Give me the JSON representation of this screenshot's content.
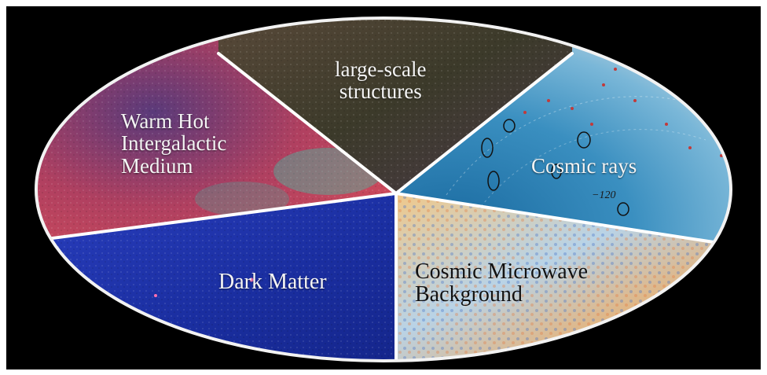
{
  "figure": {
    "segments": [
      {
        "id": "lss",
        "lines": [
          "large-scale",
          "structures"
        ],
        "color": "#4a3a2a"
      },
      {
        "id": "cr",
        "lines": [
          "Cosmic rays"
        ],
        "color": "#4fa0cc",
        "tick_label": "−120"
      },
      {
        "id": "cmb",
        "lines": [
          "Cosmic Microwave",
          "Background"
        ],
        "color": "#e8c27a"
      },
      {
        "id": "dm",
        "lines": [
          "Dark Matter"
        ],
        "color": "#1f3fb0"
      },
      {
        "id": "whim",
        "lines": [
          "Warm Hot",
          "Intergalactic",
          "Medium"
        ],
        "color": "#8a3a5a"
      }
    ]
  }
}
